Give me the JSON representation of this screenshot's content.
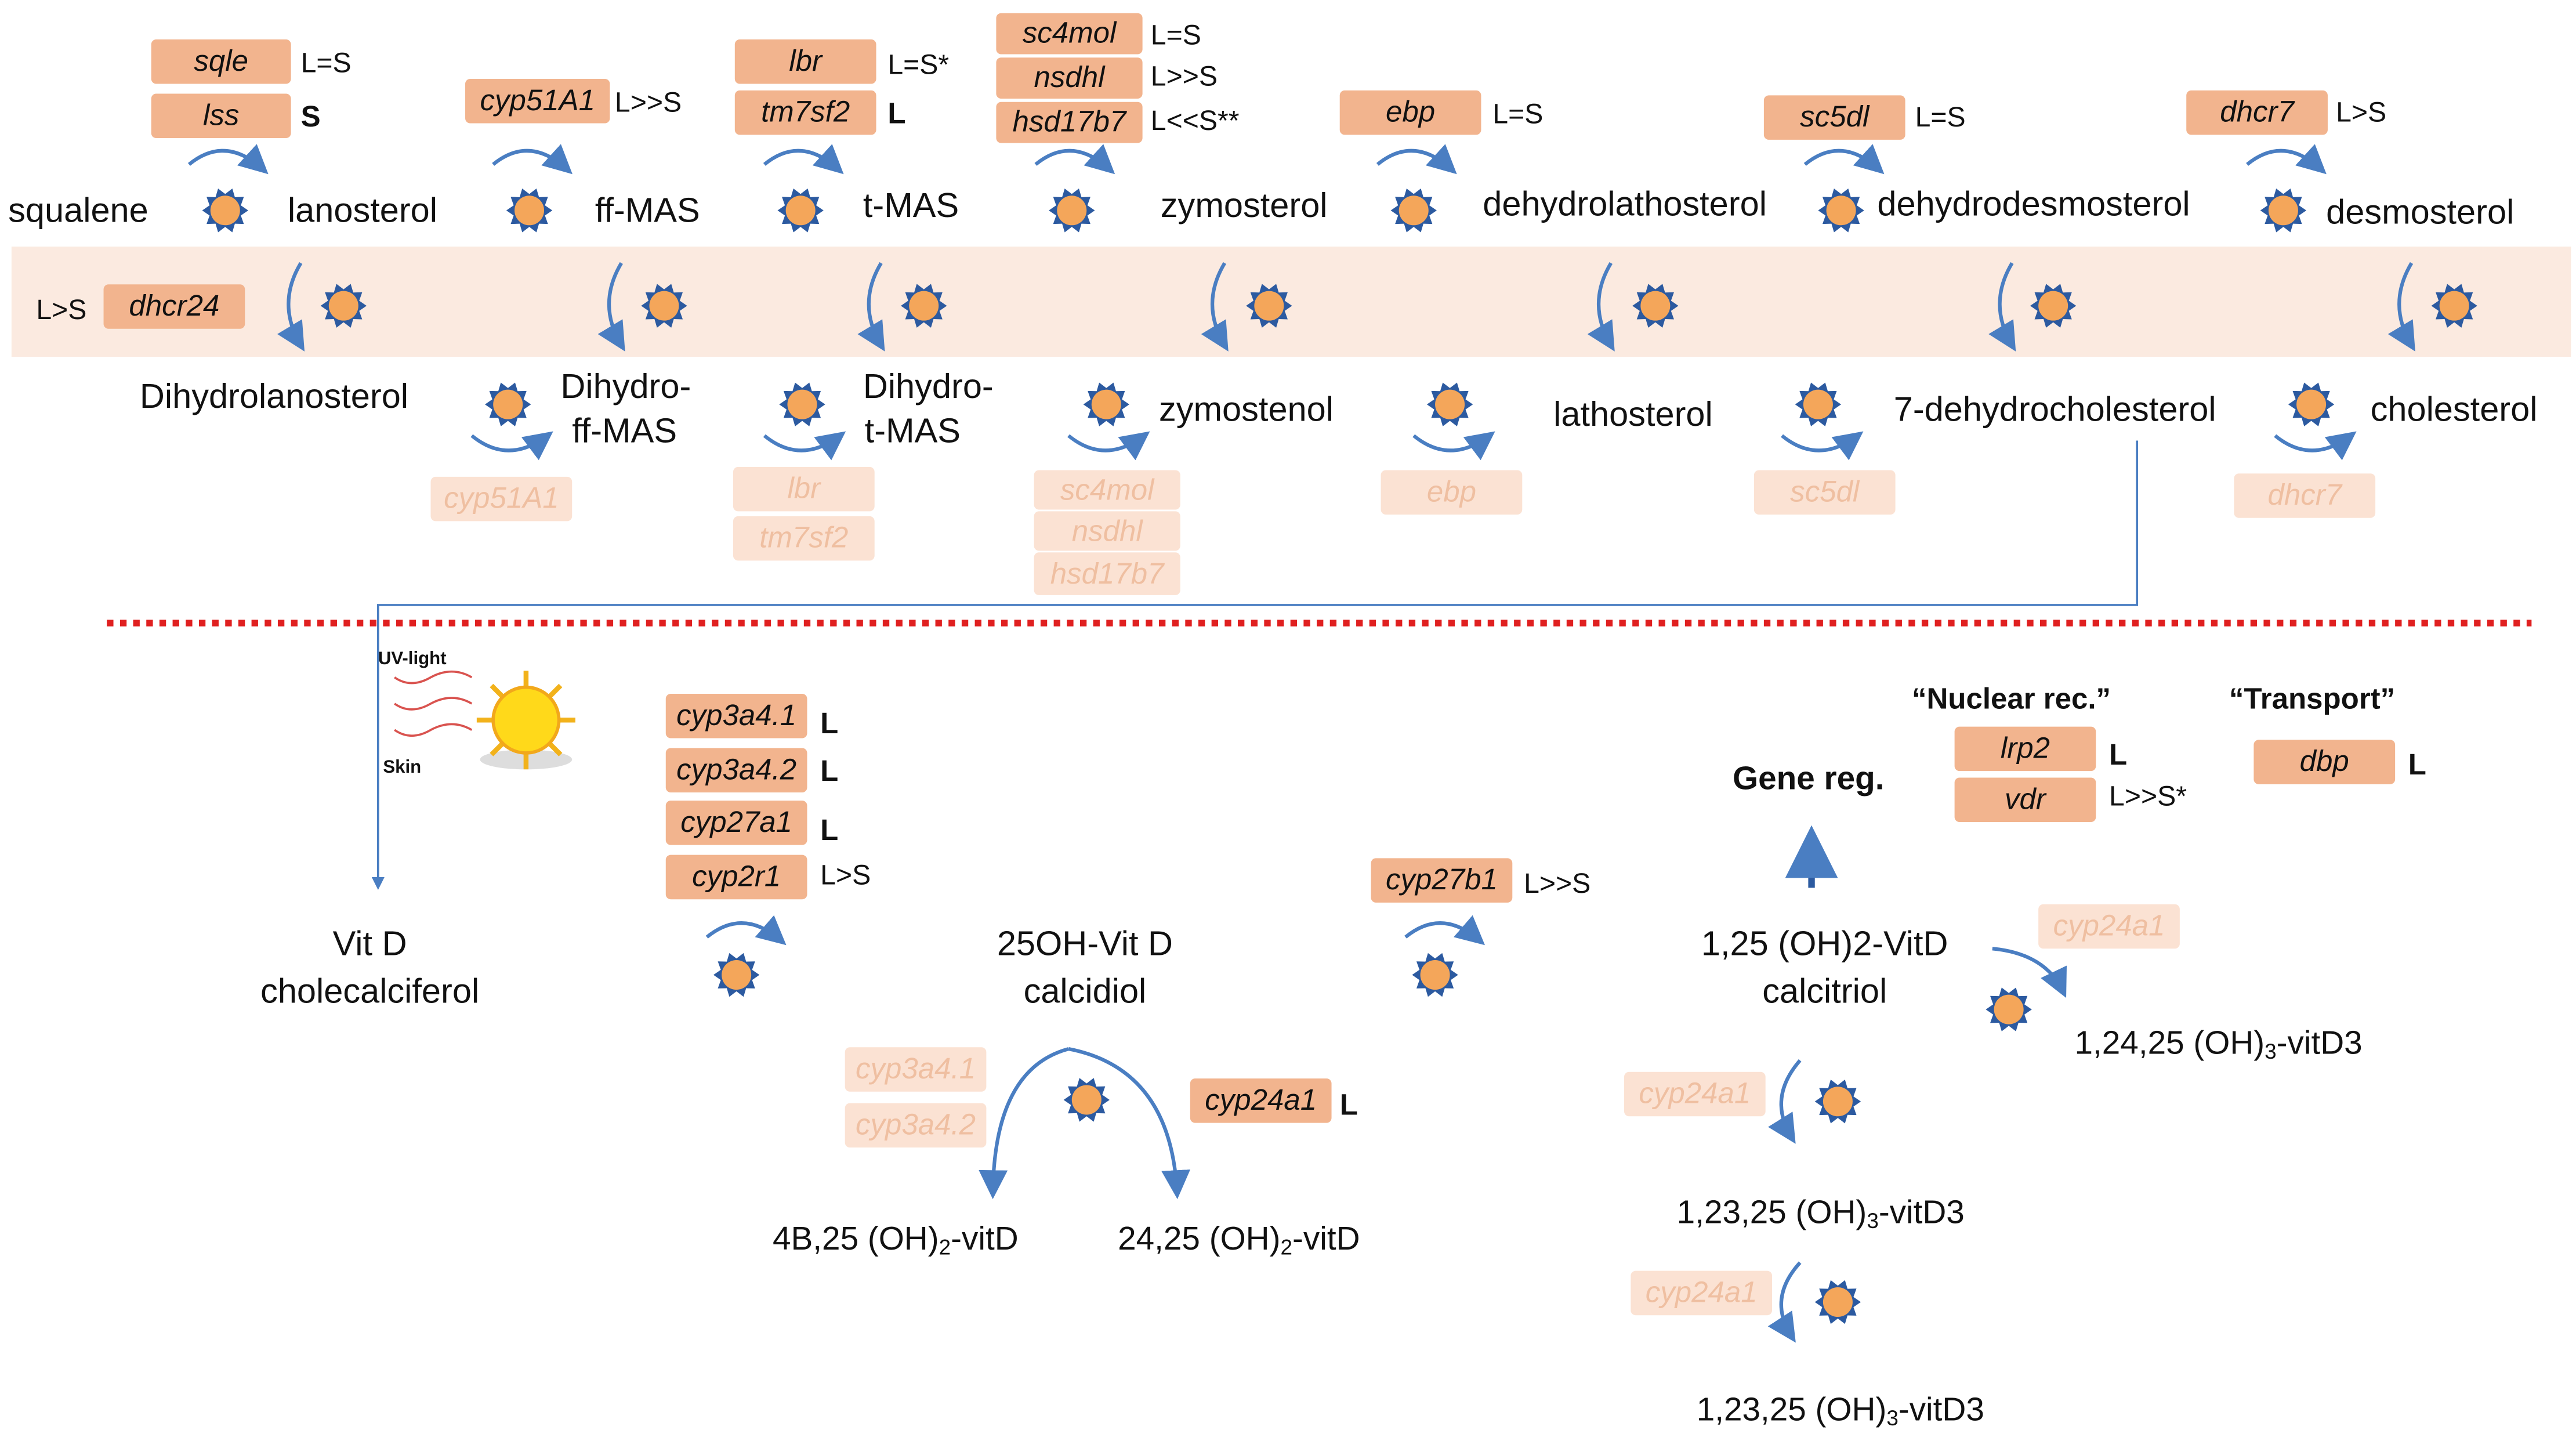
{
  "top": {
    "metabolites_upper": [
      "squalene",
      "lanosterol",
      "ff-MAS",
      "t-MAS",
      "zymosterol",
      "dehydrolathosterol",
      "dehydrodesmosterol",
      "desmosterol"
    ],
    "metabolites_lower": [
      "Dihydrolanosterol",
      "Dihydro-",
      "ff-MAS",
      "Dihydro-",
      "t-MAS",
      "zymostenol",
      "lathosterol",
      "7-dehydrocholesterol",
      "cholesterol"
    ],
    "enzymes": [
      {
        "name": "sqle",
        "note": "L=S"
      },
      {
        "name": "lss",
        "note": "S"
      },
      {
        "name": "cyp51A1",
        "note": "L>>S"
      },
      {
        "name": "lbr",
        "note": "L=S*"
      },
      {
        "name": "tm7sf2",
        "note": "L"
      },
      {
        "name": "sc4mol",
        "note": "L=S"
      },
      {
        "name": "nsdhl",
        "note": "L>>S"
      },
      {
        "name": "hsd17b7",
        "note": "L<<S**"
      },
      {
        "name": "ebp",
        "note": "L=S"
      },
      {
        "name": "sc5dl",
        "note": "L=S"
      },
      {
        "name": "dhcr7",
        "note": "L>S"
      },
      {
        "name": "dhcr24",
        "note": "L>S"
      }
    ],
    "faded_enzymes": [
      "cyp51A1",
      "lbr",
      "tm7sf2",
      "sc4mol",
      "nsdhl",
      "hsd17b7",
      "ebp",
      "sc5dl",
      "dhcr7"
    ]
  },
  "bottom": {
    "uv_label": "UV-light",
    "skin_label": "Skin",
    "vitd": [
      "Vit D",
      "cholecalciferol"
    ],
    "calcidiol": [
      "25OH-Vit D",
      "calcidiol"
    ],
    "calcitriol": [
      "1,25 (OH)2-VitD",
      "calcitriol"
    ],
    "liver_enzymes": [
      {
        "name": "cyp3a4.1",
        "note": "L"
      },
      {
        "name": "cyp3a4.2",
        "note": "L"
      },
      {
        "name": "cyp27a1",
        "note": "L"
      },
      {
        "name": "cyp2r1",
        "note": "L>S"
      }
    ],
    "cyp27b1": {
      "name": "cyp27b1",
      "note": "L>>S"
    },
    "cyp24a1_main": {
      "name": "cyp24a1",
      "note": "L"
    },
    "faded": [
      "cyp3a4.1",
      "cyp3a4.2",
      "cyp24a1",
      "cyp24a1",
      "cyp24a1"
    ],
    "products": {
      "p4b": {
        "pre": "4B,25 (OH)",
        "sub": "2",
        "post": "-vitD"
      },
      "p2425": {
        "pre": "24,25 (OH)",
        "sub": "2",
        "post": "-vitD"
      },
      "p12425": {
        "pre": "1,24,25 (OH)",
        "sub": "3",
        "post": "-vitD3"
      },
      "p12325a": {
        "pre": "1,23,25 (OH)",
        "sub": "3",
        "post": "-vitD3"
      },
      "p12325b": {
        "pre": "1,23,25 (OH)",
        "sub": "3",
        "post": "-vitD3"
      }
    },
    "gene_reg": "Gene reg.",
    "nuclear_rec": "“Nuclear rec.”",
    "transport": "“Transport”",
    "nuclear_genes": [
      {
        "name": "lrp2",
        "note": "L"
      },
      {
        "name": "vdr",
        "note": "L>>S*"
      }
    ],
    "transport_gene": {
      "name": "dbp",
      "note": "L"
    }
  },
  "colors": {
    "gene": "#f2b48e",
    "gene_faded": "#fbe2d3",
    "band": "#fbeae0",
    "arrow": "#4a7ec2",
    "divider": "#e02020",
    "gear_fill": "#f4a65a",
    "gear_edge": "#2c5aa0"
  }
}
